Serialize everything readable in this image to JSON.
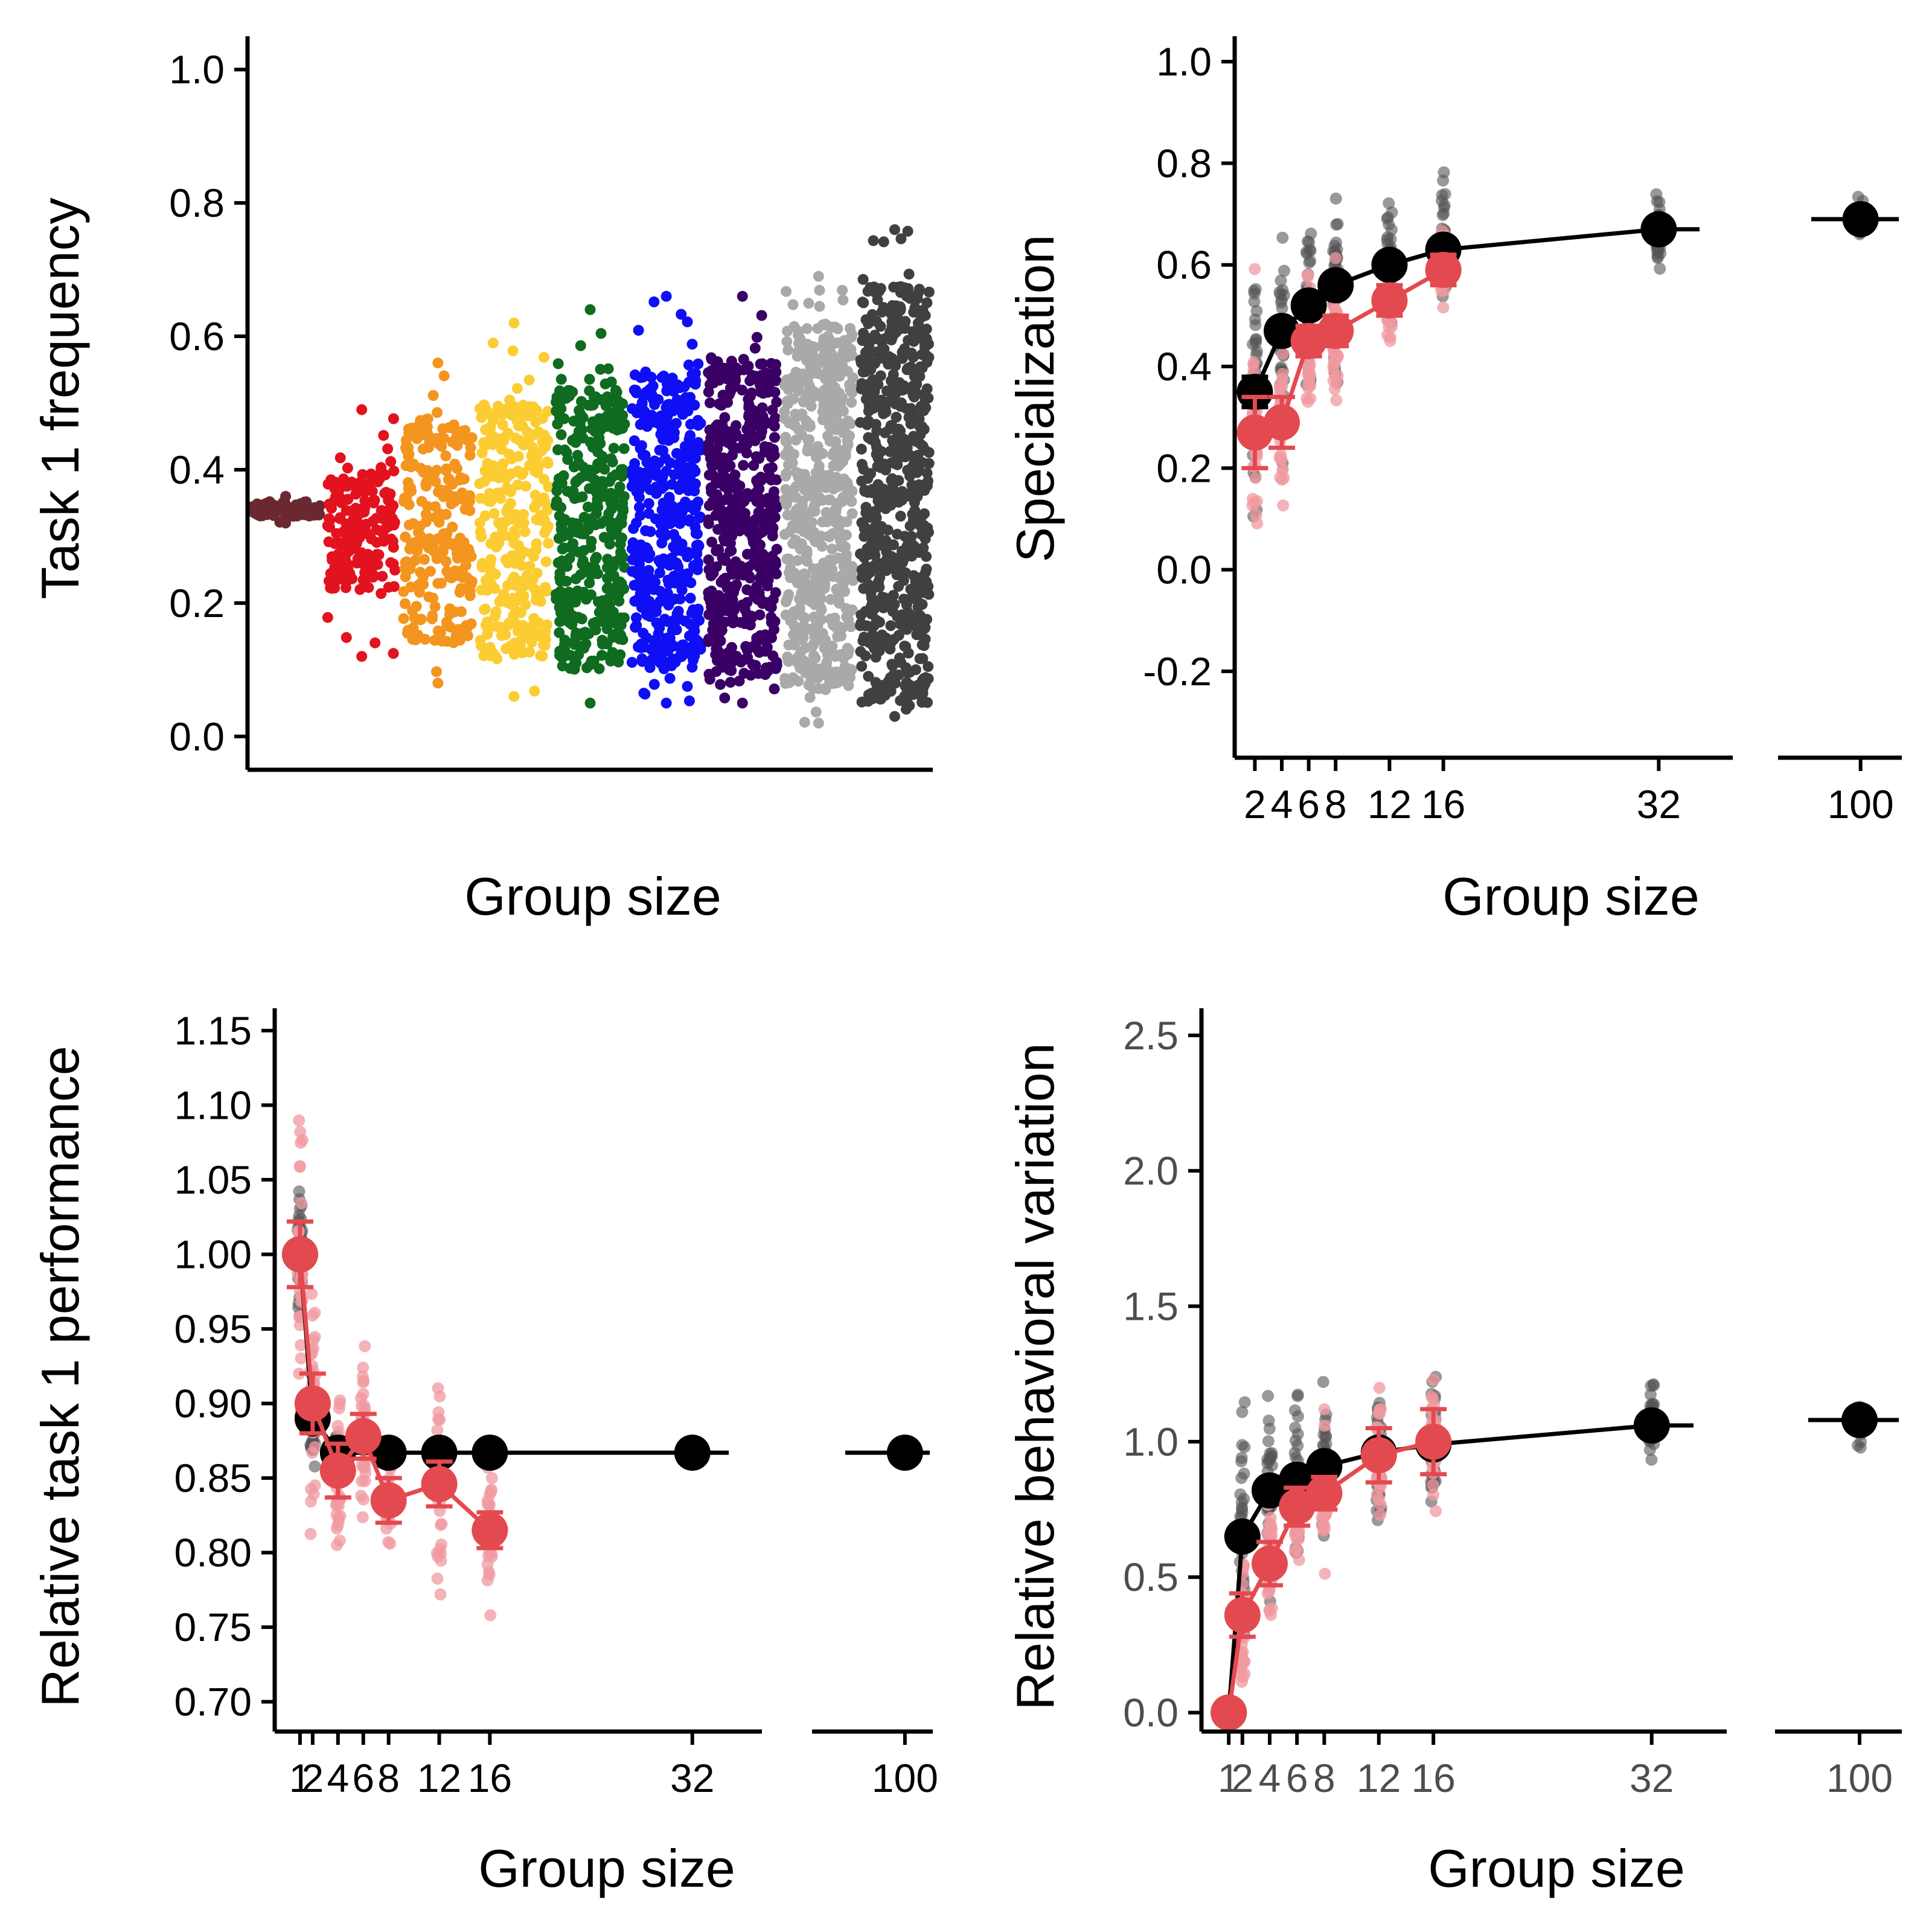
{
  "colors": {
    "black_series": "#000000",
    "red_series": "#e34a4f",
    "red_points": "#f09aa0",
    "grey_points": "#555555"
  },
  "chart_data": [
    {
      "type": "scatter",
      "panel": "top-left",
      "xlabel": "Group size",
      "ylabel": "Task 1 frequency",
      "ylim": [
        -0.05,
        1.05
      ],
      "y_ticks": [
        "0.0",
        "0.2",
        "0.4",
        "0.6",
        "0.8",
        "1.0"
      ],
      "y_tick_values": [
        0.0,
        0.2,
        0.4,
        0.6,
        0.8,
        1.0
      ],
      "groups": [
        {
          "color": "#6b2830",
          "min": 0.32,
          "max": 0.36,
          "q_low": 0.33,
          "q_high": 0.35
        },
        {
          "color": "#e3121f",
          "min": 0.12,
          "max": 0.49,
          "q_low": 0.22,
          "q_high": 0.4
        },
        {
          "color": "#f3951f",
          "min": 0.08,
          "max": 0.56,
          "q_low": 0.14,
          "q_high": 0.48
        },
        {
          "color": "#fccd33",
          "min": 0.06,
          "max": 0.62,
          "q_low": 0.12,
          "q_high": 0.5
        },
        {
          "color": "#0f6b1f",
          "min": 0.05,
          "max": 0.64,
          "q_low": 0.1,
          "q_high": 0.52
        },
        {
          "color": "#0f0ff5",
          "min": 0.05,
          "max": 0.66,
          "q_low": 0.1,
          "q_high": 0.55
        },
        {
          "color": "#3a0066",
          "min": 0.05,
          "max": 0.66,
          "q_low": 0.09,
          "q_high": 0.57
        },
        {
          "color": "#a9a9a9",
          "min": 0.02,
          "max": 0.69,
          "q_low": 0.07,
          "q_high": 0.62
        },
        {
          "color": "#404040",
          "min": 0.03,
          "max": 0.76,
          "q_low": 0.05,
          "q_high": 0.68
        }
      ]
    },
    {
      "type": "line",
      "panel": "top-right",
      "xlabel": "Group size",
      "ylabel": "Specialization",
      "ylim": [
        -0.37,
        1.05
      ],
      "y_ticks": [
        "-0.2",
        "0.0",
        "0.2",
        "0.4",
        "0.6",
        "0.8",
        "1.0"
      ],
      "y_tick_values": [
        -0.2,
        0.0,
        0.2,
        0.4,
        0.6,
        0.8,
        1.0
      ],
      "x_ticks": [
        "2",
        "4",
        "6",
        "8",
        "12",
        "16",
        "32",
        "100"
      ],
      "x_tick_values": [
        2,
        4,
        6,
        8,
        12,
        16,
        32,
        100
      ],
      "x_main_range": [
        0.5,
        37.5
      ],
      "x_break_range": [
        88,
        106
      ],
      "series": [
        {
          "color_key": "black_series",
          "x": [
            2,
            4,
            6,
            8,
            12,
            16,
            32,
            100
          ],
          "y": [
            0.35,
            0.47,
            0.52,
            0.56,
            0.6,
            0.63,
            0.67,
            0.69
          ],
          "err": [
            0.03,
            0.02,
            0.02,
            0.02,
            0.02,
            0.02,
            0.01,
            0.01
          ],
          "spread": [
            0.4,
            0.35,
            0.3,
            0.28,
            0.2,
            0.2,
            0.1,
            0.05
          ]
        },
        {
          "color_key": "red_series",
          "x": [
            2,
            4,
            6,
            8,
            12,
            16
          ],
          "y": [
            0.27,
            0.29,
            0.45,
            0.47,
            0.53,
            0.59
          ],
          "err": [
            0.07,
            0.05,
            0.03,
            0.03,
            0.03,
            0.03
          ],
          "spread": [
            0.35,
            0.3,
            0.2,
            0.2,
            0.15,
            0.12
          ]
        }
      ]
    },
    {
      "type": "line",
      "panel": "bottom-left",
      "xlabel": "Group size",
      "ylabel": "Relative task 1 performance",
      "ylim": [
        0.68,
        1.165
      ],
      "y_ticks": [
        "0.70",
        "0.75",
        "0.80",
        "0.85",
        "0.90",
        "0.95",
        "1.00",
        "1.05",
        "1.10",
        "1.15"
      ],
      "y_tick_values": [
        0.7,
        0.75,
        0.8,
        0.85,
        0.9,
        0.95,
        1.0,
        1.05,
        1.1,
        1.15
      ],
      "x_ticks": [
        "1",
        "2",
        "4",
        "6",
        "8",
        "12",
        "16",
        "32",
        "100"
      ],
      "x_tick_values": [
        1,
        2,
        4,
        6,
        8,
        12,
        16,
        32,
        100
      ],
      "x_main_range": [
        -1.0,
        37.5
      ],
      "x_break_range": [
        90,
        103
      ],
      "series": [
        {
          "color_key": "black_series",
          "x": [
            1,
            2,
            4,
            8,
            12,
            16,
            32,
            100
          ],
          "y": [
            1.0,
            0.89,
            0.867,
            0.867,
            0.867,
            0.867,
            0.867,
            0.867
          ],
          "err": [
            0.005,
            0.005,
            0.003,
            0.002,
            0.002,
            0.002,
            0.002,
            0.002
          ],
          "spread": [
            0.06,
            0.05,
            0.02,
            0.0,
            0.0,
            0.0,
            0.0,
            0.0
          ]
        },
        {
          "color_key": "red_series",
          "x": [
            1,
            2,
            4,
            6,
            8,
            12,
            16
          ],
          "y": [
            1.0,
            0.9,
            0.855,
            0.878,
            0.835,
            0.846,
            0.815
          ],
          "err": [
            0.022,
            0.02,
            0.018,
            0.015,
            0.015,
            0.015,
            0.012
          ],
          "spread": [
            0.12,
            0.1,
            0.08,
            0.08,
            0.06,
            0.1,
            0.06
          ]
        }
      ]
    },
    {
      "type": "line",
      "panel": "bottom-right",
      "xlabel": "Group size",
      "ylabel": "Relative behavioral variation",
      "ylim": [
        -0.07,
        2.6
      ],
      "y_ticks": [
        "0.0",
        "0.5",
        "1.0",
        "1.5",
        "2.0",
        "2.5"
      ],
      "y_tick_values": [
        0.0,
        0.5,
        1.0,
        1.5,
        2.0,
        2.5
      ],
      "x_ticks": [
        "1",
        "2",
        "4",
        "6",
        "8",
        "12",
        "16",
        "32",
        "100"
      ],
      "x_tick_values": [
        1,
        2,
        4,
        6,
        8,
        12,
        16,
        32,
        100
      ],
      "x_main_range": [
        -1.0,
        37.5
      ],
      "x_break_range": [
        88,
        106
      ],
      "series": [
        {
          "color_key": "black_series",
          "x": [
            1,
            2,
            4,
            6,
            8,
            12,
            16,
            32,
            100
          ],
          "y": [
            0.0,
            0.65,
            0.82,
            0.86,
            0.91,
            0.96,
            0.99,
            1.06,
            1.08
          ],
          "err": [
            0.01,
            0.03,
            0.03,
            0.03,
            0.03,
            0.03,
            0.03,
            0.02,
            0.02
          ],
          "spread": [
            0.0,
            0.6,
            0.5,
            0.45,
            0.45,
            0.35,
            0.35,
            0.2,
            0.12
          ]
        },
        {
          "color_key": "red_series",
          "x": [
            1,
            2,
            4,
            6,
            8,
            12,
            16
          ],
          "y": [
            0.0,
            0.36,
            0.55,
            0.76,
            0.81,
            0.95,
            1.0
          ],
          "err": [
            0.01,
            0.08,
            0.08,
            0.07,
            0.06,
            0.1,
            0.12
          ],
          "spread": [
            0.0,
            0.4,
            0.4,
            0.35,
            0.35,
            0.4,
            0.35
          ]
        }
      ]
    }
  ]
}
